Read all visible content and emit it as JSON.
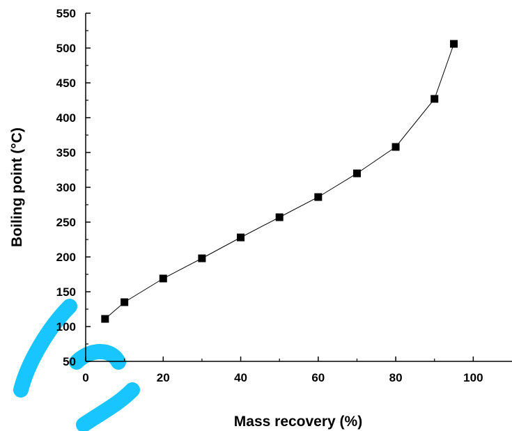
{
  "chart_data": {
    "type": "line",
    "title": "",
    "xlabel": "Mass recovery (%)",
    "ylabel": "Boiling point (°C)",
    "xlim": [
      0,
      110
    ],
    "ylim": [
      50,
      550
    ],
    "x_ticks": [
      0,
      20,
      40,
      60,
      80,
      100
    ],
    "y_ticks": [
      50,
      100,
      150,
      200,
      250,
      300,
      350,
      400,
      450,
      500,
      550
    ],
    "grid": false,
    "series": [
      {
        "marker": "square",
        "color": "#000000",
        "x": [
          5,
          10,
          20,
          30,
          40,
          50,
          60,
          70,
          80,
          90,
          95
        ],
        "y": [
          111,
          135,
          169,
          198,
          228,
          257,
          286,
          320,
          358,
          427,
          506
        ]
      }
    ]
  },
  "colors": {
    "axis": "#000000",
    "marker": "#000000",
    "watermark": "#00bfff"
  }
}
